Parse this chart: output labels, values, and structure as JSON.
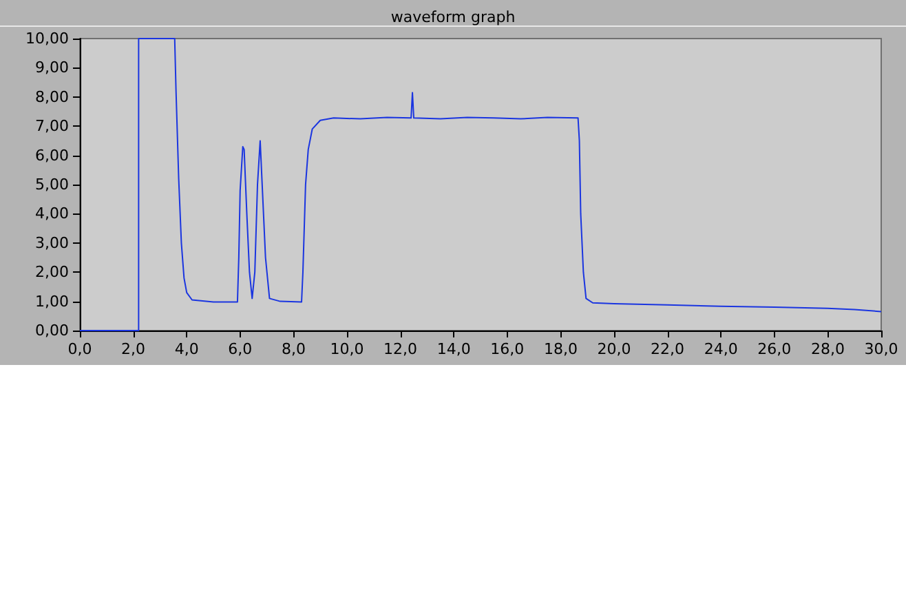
{
  "chart_data": {
    "type": "line",
    "title": "waveform graph",
    "xlim": [
      0,
      30
    ],
    "ylim": [
      0,
      10
    ],
    "xticks": [
      {
        "value": 0,
        "label": "0,0"
      },
      {
        "value": 2,
        "label": "2,0"
      },
      {
        "value": 4,
        "label": "4,0"
      },
      {
        "value": 6,
        "label": "6,0"
      },
      {
        "value": 8,
        "label": "8,0"
      },
      {
        "value": 10,
        "label": "10,0"
      },
      {
        "value": 12,
        "label": "12,0"
      },
      {
        "value": 14,
        "label": "14,0"
      },
      {
        "value": 16,
        "label": "16,0"
      },
      {
        "value": 18,
        "label": "18,0"
      },
      {
        "value": 20,
        "label": "20,0"
      },
      {
        "value": 22,
        "label": "22,0"
      },
      {
        "value": 24,
        "label": "24,0"
      },
      {
        "value": 26,
        "label": "26,0"
      },
      {
        "value": 28,
        "label": "28,0"
      },
      {
        "value": 30,
        "label": "30,0"
      }
    ],
    "yticks": [
      {
        "value": 0,
        "label": "0,00"
      },
      {
        "value": 1,
        "label": "1,00"
      },
      {
        "value": 2,
        "label": "2,00"
      },
      {
        "value": 3,
        "label": "3,00"
      },
      {
        "value": 4,
        "label": "4,00"
      },
      {
        "value": 5,
        "label": "5,00"
      },
      {
        "value": 6,
        "label": "6,00"
      },
      {
        "value": 7,
        "label": "7,00"
      },
      {
        "value": 8,
        "label": "8,00"
      },
      {
        "value": 9,
        "label": "9,00"
      },
      {
        "value": 10,
        "label": "10,00"
      }
    ],
    "grid": false,
    "marker": "none",
    "line_style": "solid",
    "series": [
      {
        "color": "#1a35e0",
        "x": [
          0,
          2.2,
          2.2,
          3.55,
          3.6,
          3.7,
          3.8,
          3.9,
          4.0,
          4.2,
          5.0,
          5.9,
          5.95,
          6.0,
          6.1,
          6.15,
          6.25,
          6.35,
          6.45,
          6.55,
          6.65,
          6.75,
          6.85,
          6.95,
          7.1,
          7.5,
          8.3,
          8.35,
          8.45,
          8.55,
          8.7,
          9.0,
          9.5,
          10.5,
          11.5,
          12.4,
          12.45,
          12.5,
          13.5,
          14.5,
          15.5,
          16.5,
          17.5,
          18.65,
          18.7,
          18.75,
          18.85,
          18.95,
          19.2,
          20,
          22,
          24,
          26,
          28,
          29,
          30
        ],
        "values": [
          0,
          0,
          10,
          10,
          8.2,
          5.2,
          3.0,
          1.8,
          1.3,
          1.05,
          0.98,
          0.98,
          2.5,
          4.8,
          6.3,
          6.2,
          4.0,
          2.0,
          1.1,
          2.0,
          5.0,
          6.5,
          4.5,
          2.5,
          1.1,
          1.0,
          0.98,
          2.0,
          5.0,
          6.2,
          6.9,
          7.2,
          7.28,
          7.25,
          7.3,
          7.28,
          8.15,
          7.28,
          7.25,
          7.3,
          7.28,
          7.25,
          7.3,
          7.28,
          6.5,
          4.0,
          2.0,
          1.1,
          0.95,
          0.92,
          0.88,
          0.83,
          0.8,
          0.76,
          0.72,
          0.65
        ]
      }
    ]
  }
}
